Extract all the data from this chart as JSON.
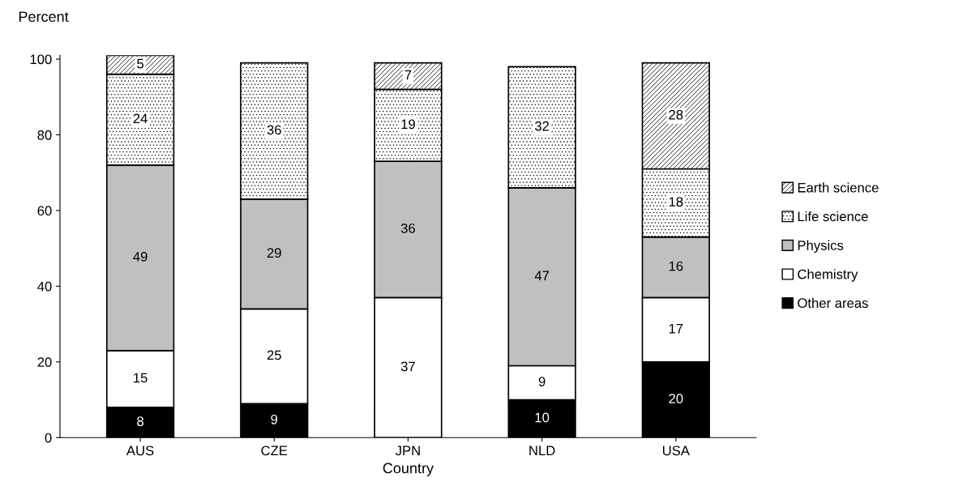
{
  "chart_data": {
    "type": "bar",
    "stacked": true,
    "xlabel": "Country",
    "ylabel": "Percent",
    "categories": [
      "AUS",
      "CZE",
      "JPN",
      "NLD",
      "USA"
    ],
    "series": [
      {
        "name": "Other areas",
        "color": "#000000",
        "values": [
          8,
          9,
          null,
          10,
          20
        ]
      },
      {
        "name": "Chemistry",
        "color": "#ffffff",
        "values": [
          15,
          25,
          37,
          9,
          17
        ]
      },
      {
        "name": "Physics",
        "color": "#c0c0c0",
        "values": [
          49,
          29,
          36,
          47,
          16
        ]
      },
      {
        "name": "Life science",
        "color": "#000000",
        "values": [
          24,
          36,
          19,
          32,
          18
        ]
      },
      {
        "name": "Earth science",
        "color": "#000000",
        "values": [
          5,
          null,
          7,
          null,
          28
        ]
      }
    ],
    "ylim": [
      0,
      101
    ],
    "yticks": [
      0,
      20,
      40,
      60,
      80,
      100
    ],
    "data_labels": true,
    "legend": "right",
    "grid": false
  }
}
